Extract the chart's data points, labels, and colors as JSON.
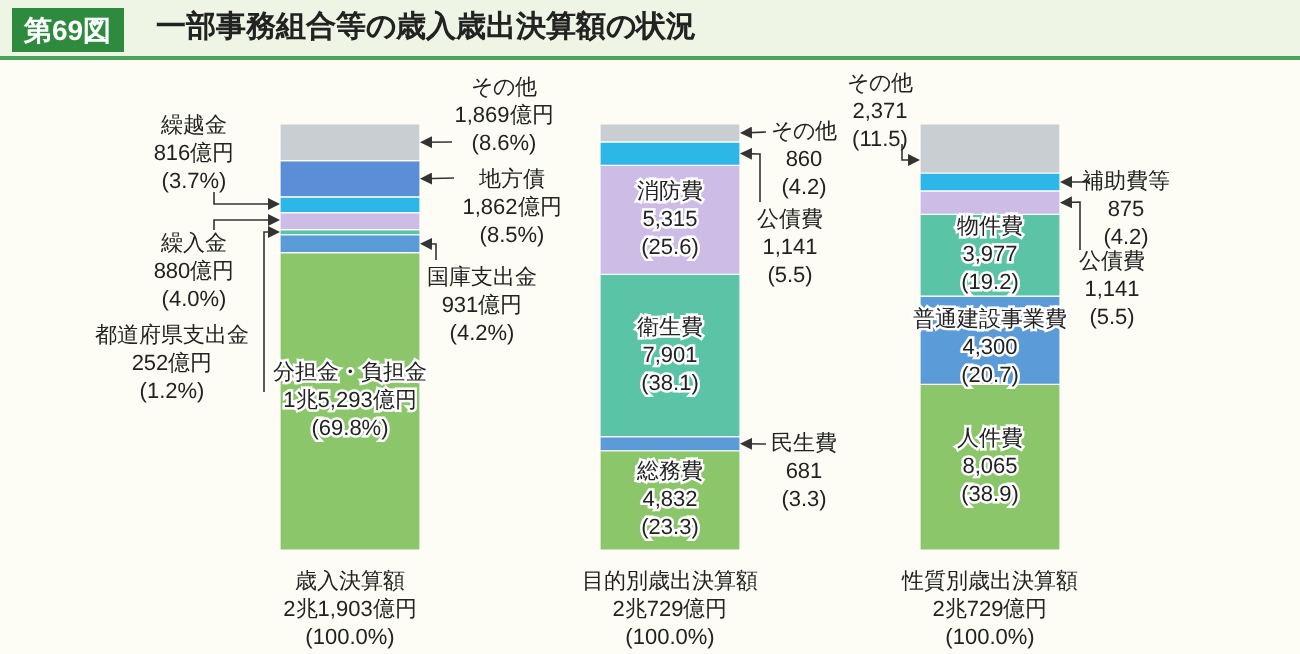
{
  "chart_data": {
    "type": "bar",
    "stacked": true,
    "title": "一部事務組合等の歳入歳出決算額の状況",
    "annotations": [
      "第69図"
    ],
    "categories": [
      "歳入決算額\n2兆1,903億円\n(100.0%)",
      "目的別歳出決算額\n2兆729億円\n(100.0%)",
      "性質別歳出決算額\n2兆729億円\n(100.0%)"
    ],
    "ylim": [
      0,
      100
    ],
    "tick_labels": "x",
    "series": [
      {
        "color": "#8cc66b",
        "values": [
          69.8,
          23.3,
          38.9
        ],
        "value_labels": [
          "分担金・負担金\n1兆5,293億円\n(69.8%)",
          "総務費\n4,832\n(23.3)",
          "人件費\n8,065\n(38.9)"
        ]
      },
      {
        "color": "#5b9bd8",
        "values": [
          4.2,
          3.3,
          20.7
        ],
        "value_labels": [
          "国庫支出金\n931億円\n(4.2%)",
          "民生費\n681\n(3.3)",
          "普通建設事業費\n4,300\n(20.7)"
        ]
      },
      {
        "color": "#5cc4a6",
        "values": [
          1.2,
          38.1,
          19.2
        ],
        "value_labels": [
          "都道府県支出金\n252億円\n(1.2%)",
          "衛生費\n7,901\n(38.1)",
          "物件費\n3,977\n(19.2)"
        ]
      },
      {
        "color": "#cdbde6",
        "values": [
          4.0,
          25.6,
          5.5
        ],
        "value_labels": [
          "繰入金\n880億円\n(4.0%)",
          "消防費\n5,315\n(25.6)",
          "公債費\n1,141\n(5.5)"
        ]
      },
      {
        "color": "#2cb7e8",
        "values": [
          3.7,
          5.5,
          4.2
        ],
        "value_labels": [
          "繰越金\n816億円\n(3.7%)",
          "公債費\n1,141\n(5.5)",
          "補助費等\n875\n(4.2)"
        ]
      },
      {
        "color": "#5a8fd8",
        "values": [
          8.5,
          null,
          null
        ],
        "value_labels": [
          "地方債\n1,862億円\n(8.5%)",
          null,
          null
        ]
      },
      {
        "color": "#c9ced2",
        "values": [
          8.6,
          4.2,
          11.5
        ],
        "value_labels": [
          "その他\n1,869億円\n(8.6%)",
          "その他\n860\n(4.2)",
          "その他\n2,371\n(11.5)"
        ]
      }
    ]
  }
}
